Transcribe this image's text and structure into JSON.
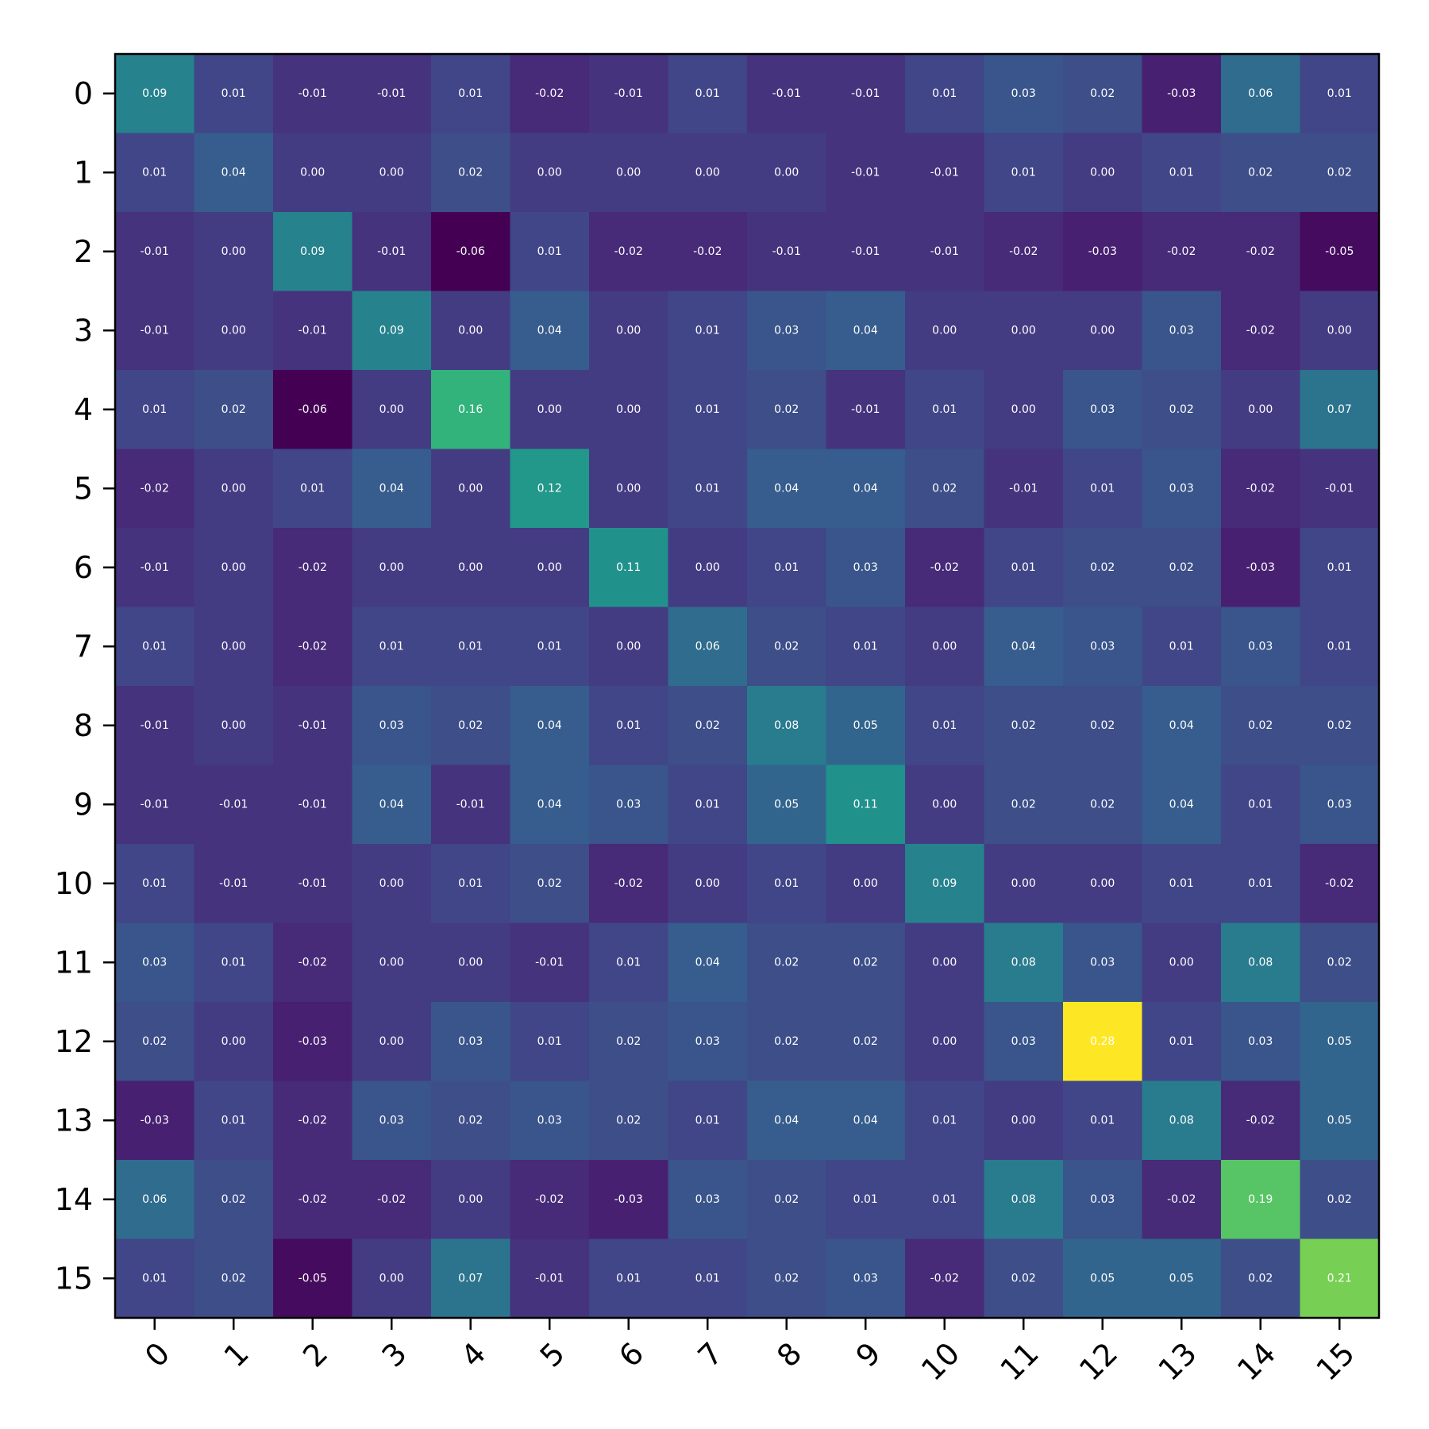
{
  "chart_data": {
    "type": "heatmap",
    "title": "",
    "xlabel": "",
    "ylabel": "",
    "colormap": "viridis",
    "vmin": -0.06,
    "vmax": 0.28,
    "x_labels": [
      "0",
      "1",
      "2",
      "3",
      "4",
      "5",
      "6",
      "7",
      "8",
      "9",
      "10",
      "11",
      "12",
      "13",
      "14",
      "15"
    ],
    "y_labels": [
      "0",
      "1",
      "2",
      "3",
      "4",
      "5",
      "6",
      "7",
      "8",
      "9",
      "10",
      "11",
      "12",
      "13",
      "14",
      "15"
    ],
    "x_tick_rotation_deg": -45,
    "grid": false,
    "values": [
      [
        0.09,
        0.01,
        -0.01,
        -0.01,
        0.01,
        -0.02,
        -0.01,
        0.01,
        -0.01,
        -0.01,
        0.01,
        0.03,
        0.02,
        -0.03,
        0.06,
        0.01
      ],
      [
        0.01,
        0.04,
        -0.0,
        -0.0,
        0.02,
        -0.0,
        -0.0,
        0.0,
        0.0,
        -0.01,
        -0.01,
        0.01,
        0.0,
        0.01,
        0.02,
        0.02
      ],
      [
        -0.01,
        -0.0,
        0.09,
        -0.01,
        -0.06,
        0.01,
        -0.02,
        -0.02,
        -0.01,
        -0.01,
        -0.01,
        -0.02,
        -0.03,
        -0.02,
        -0.02,
        -0.05
      ],
      [
        -0.01,
        -0.0,
        -0.01,
        0.09,
        -0.0,
        0.04,
        0.0,
        0.01,
        0.03,
        0.04,
        0.0,
        -0.0,
        -0.0,
        0.03,
        -0.02,
        0.0
      ],
      [
        0.01,
        0.02,
        -0.06,
        -0.0,
        0.16,
        -0.0,
        0.0,
        0.01,
        0.02,
        -0.01,
        0.01,
        0.0,
        0.03,
        0.02,
        -0.0,
        0.07
      ],
      [
        -0.02,
        -0.0,
        0.01,
        0.04,
        -0.0,
        0.12,
        0.0,
        0.01,
        0.04,
        0.04,
        0.02,
        -0.01,
        0.01,
        0.03,
        -0.02,
        -0.01
      ],
      [
        -0.01,
        -0.0,
        -0.02,
        0.0,
        0.0,
        0.0,
        0.11,
        0.0,
        0.01,
        0.03,
        -0.02,
        0.01,
        0.02,
        0.02,
        -0.03,
        0.01
      ],
      [
        0.01,
        0.0,
        -0.02,
        0.01,
        0.01,
        0.01,
        0.0,
        0.06,
        0.02,
        0.01,
        -0.0,
        0.04,
        0.03,
        0.01,
        0.03,
        0.01
      ],
      [
        -0.01,
        0.0,
        -0.01,
        0.03,
        0.02,
        0.04,
        0.01,
        0.02,
        0.08,
        0.05,
        0.01,
        0.02,
        0.02,
        0.04,
        0.02,
        0.02
      ],
      [
        -0.01,
        -0.01,
        -0.01,
        0.04,
        -0.01,
        0.04,
        0.03,
        0.01,
        0.05,
        0.11,
        0.0,
        0.02,
        0.02,
        0.04,
        0.01,
        0.03
      ],
      [
        0.01,
        -0.01,
        -0.01,
        0.0,
        0.01,
        0.02,
        -0.02,
        -0.0,
        0.01,
        0.0,
        0.09,
        -0.0,
        -0.0,
        0.01,
        0.01,
        -0.02
      ],
      [
        0.03,
        0.01,
        -0.02,
        -0.0,
        0.0,
        -0.01,
        0.01,
        0.04,
        0.02,
        0.02,
        -0.0,
        0.08,
        0.03,
        -0.0,
        0.08,
        0.02
      ],
      [
        0.02,
        0.0,
        -0.03,
        -0.0,
        0.03,
        0.01,
        0.02,
        0.03,
        0.02,
        0.02,
        -0.0,
        0.03,
        0.28,
        0.01,
        0.03,
        0.05
      ],
      [
        -0.03,
        0.01,
        -0.02,
        0.03,
        0.02,
        0.03,
        0.02,
        0.01,
        0.04,
        0.04,
        0.01,
        -0.0,
        0.01,
        0.08,
        -0.02,
        0.05
      ],
      [
        0.06,
        0.02,
        -0.02,
        -0.02,
        -0.0,
        -0.02,
        -0.03,
        0.03,
        0.02,
        0.01,
        0.01,
        0.08,
        0.03,
        -0.02,
        0.19,
        0.02
      ],
      [
        0.01,
        0.02,
        -0.05,
        0.0,
        0.07,
        -0.01,
        0.01,
        0.01,
        0.02,
        0.03,
        -0.02,
        0.02,
        0.05,
        0.05,
        0.02,
        0.21
      ]
    ]
  }
}
